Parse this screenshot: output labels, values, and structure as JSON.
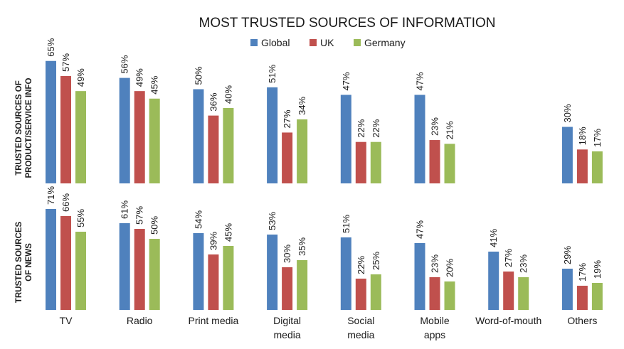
{
  "chart_data": {
    "type": "bar",
    "title": "MOST TRUSTED SOURCES OF INFORMATION",
    "legend_position": "top-center",
    "grid": false,
    "y_unit": "%",
    "colors": {
      "Global": "#4f81bd",
      "UK": "#c0504d",
      "Germany": "#9bbb59"
    },
    "categories": [
      [
        "TV"
      ],
      [
        "Radio"
      ],
      [
        "Print media"
      ],
      [
        "Digital",
        "media"
      ],
      [
        "Social",
        "media"
      ],
      [
        "Mobile",
        "apps"
      ],
      [
        "Word-of-mouth"
      ],
      [
        "Others"
      ]
    ],
    "panels": [
      {
        "label": [
          "TRUSTED SOURCES OF",
          "PRODUCT/SERVICE INFO"
        ],
        "series": [
          {
            "name": "Global",
            "values": [
              65,
              56,
              50,
              51,
              47,
              47,
              null,
              30
            ]
          },
          {
            "name": "UK",
            "values": [
              57,
              49,
              36,
              27,
              22,
              23,
              null,
              18
            ]
          },
          {
            "name": "Germany",
            "values": [
              49,
              45,
              40,
              34,
              22,
              21,
              null,
              17
            ]
          }
        ]
      },
      {
        "label": [
          "TRUSTED SOURCES",
          "OF NEWS"
        ],
        "series": [
          {
            "name": "Global",
            "values": [
              71,
              61,
              54,
              53,
              51,
              47,
              41,
              29
            ]
          },
          {
            "name": "UK",
            "values": [
              66,
              57,
              39,
              30,
              22,
              23,
              27,
              17
            ]
          },
          {
            "name": "Germany",
            "values": [
              55,
              50,
              45,
              35,
              25,
              20,
              23,
              19
            ]
          }
        ]
      }
    ]
  }
}
